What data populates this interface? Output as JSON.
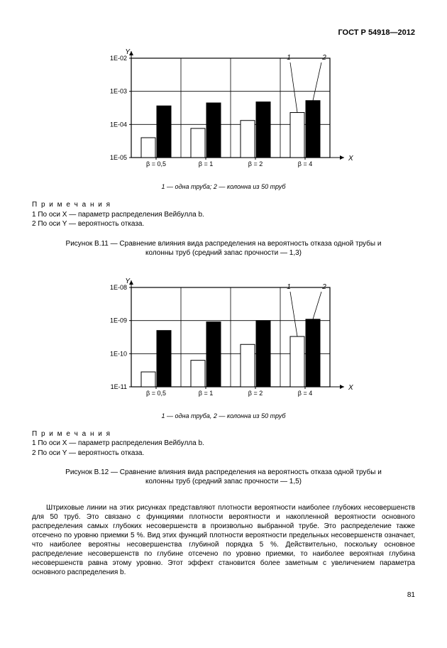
{
  "doc_header": "ГОСТ Р 54918—2012",
  "page_number": "81",
  "chart1": {
    "type": "bar",
    "y_axis_label": "Y",
    "x_axis_label": "X",
    "y_ticks": [
      "1E-02",
      "1E-03",
      "1E-04",
      "1E-05"
    ],
    "y_tick_log": [
      -2,
      -3,
      -4,
      -5
    ],
    "x_categories": [
      "β = 0,5",
      "β = 1",
      "β = 2",
      "β = 4"
    ],
    "series_white_log": [
      -4.4,
      -4.12,
      -3.88,
      -3.64
    ],
    "series_black_log": [
      -3.44,
      -3.35,
      -3.32,
      -3.28
    ],
    "bar_colors": {
      "white": "#ffffff",
      "black": "#000000"
    },
    "annotations": [
      {
        "label": "1",
        "target": "white_last"
      },
      {
        "label": "2",
        "target": "black_last"
      }
    ],
    "grid_color": "#000000",
    "background_color": "#ffffff",
    "legend": "1 — одна труба; 2 — колонна из 50 труб"
  },
  "notes1": {
    "heading": "П р и м е ч а н и я",
    "lines": [
      "1 По оси X — параметр распределения Вейбулла b.",
      "2 По оси Y — вероятность отказа."
    ]
  },
  "caption1": "Рисунок В.11 — Сравнение влияния вида распределения на вероятность отказа одной трубы и колонны труб (средний запас прочности — 1,3)",
  "chart2": {
    "type": "bar",
    "y_axis_label": "Y",
    "x_axis_label": "X",
    "y_ticks": [
      "1E-08",
      "1E-09",
      "1E-10",
      "1E-11"
    ],
    "y_tick_log": [
      -8,
      -9,
      -10,
      -11
    ],
    "x_categories": [
      "β = 0,5",
      "β = 1",
      "β = 2",
      "β = 4"
    ],
    "series_white_log": [
      -10.55,
      -10.2,
      -9.72,
      -9.48
    ],
    "series_black_log": [
      -9.3,
      -9.04,
      -9.0,
      -8.96
    ],
    "bar_colors": {
      "white": "#ffffff",
      "black": "#000000"
    },
    "annotations": [
      {
        "label": "1",
        "target": "white_last"
      },
      {
        "label": "2",
        "target": "black_last"
      }
    ],
    "grid_color": "#000000",
    "background_color": "#ffffff",
    "legend": "1 — одна труба, 2 — колонна из 50 труб"
  },
  "notes2": {
    "heading": "П р и м е ч а н и я",
    "lines": [
      "1 По оси X — параметр распределения Вейбулла b.",
      "2 По оси Y — вероятность отказа."
    ]
  },
  "caption2": "Рисунок В.12 — Сравнение влияния вида распределения на вероятность отказа одной трубы и колонны труб (средний запас прочности — 1,5)",
  "body_paragraph": "Штриховые линии на этих рисунках представляют плотности вероятности наиболее глубоких несовершенств для 50 труб. Это связано с функциями плотности вероятности и накопленной вероятности основного распределения самых глубоких несовершенств в произвольно выбранной трубе. Это распределение также отсечено по уровню приемки 5 %. Вид этих функций плотности вероятности предельных несовершенств означает, что наиболее вероятны несовершенства глубиной порядка 5 %. Действительно, поскольку основное распределение несовершенств по глубине отсечено по уровню приемки, то наиболее вероятная глубина несовершенств равна этому уровню. Этот эффект становится более заметным с увеличением параметра основного распределения b."
}
